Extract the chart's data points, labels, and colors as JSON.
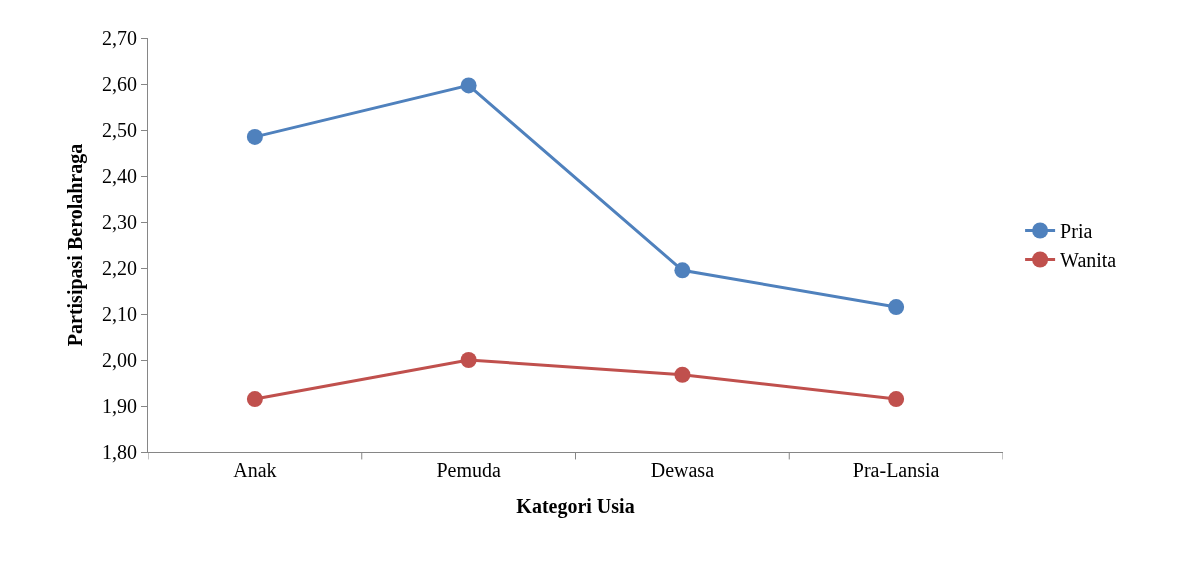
{
  "chart_data": {
    "type": "line",
    "xlabel": "Kategori Usia",
    "ylabel": "Partisipasi Berolahraga",
    "categories": [
      "Anak",
      "Pemuda",
      "Dewasa",
      "Pra-Lansia"
    ],
    "series": [
      {
        "name": "Pria",
        "color": "#4f81bd",
        "values": [
          2.485,
          2.597,
          2.195,
          2.115
        ]
      },
      {
        "name": "Wanita",
        "color": "#c0504d",
        "values": [
          1.915,
          2.0,
          1.968,
          1.915
        ]
      }
    ],
    "ylim": [
      1.8,
      2.7
    ],
    "yticks": [
      {
        "value": 1.8,
        "label": "1,80"
      },
      {
        "value": 1.9,
        "label": "1,90"
      },
      {
        "value": 2.0,
        "label": "2,00"
      },
      {
        "value": 2.1,
        "label": "2,10"
      },
      {
        "value": 2.2,
        "label": "2,20"
      },
      {
        "value": 2.3,
        "label": "2,30"
      },
      {
        "value": 2.4,
        "label": "2,40"
      },
      {
        "value": 2.5,
        "label": "2,50"
      },
      {
        "value": 2.6,
        "label": "2,60"
      },
      {
        "value": 2.7,
        "label": "2,70"
      }
    ],
    "grid": false,
    "legend": "right",
    "marker": "circle",
    "line_style": "solid"
  }
}
